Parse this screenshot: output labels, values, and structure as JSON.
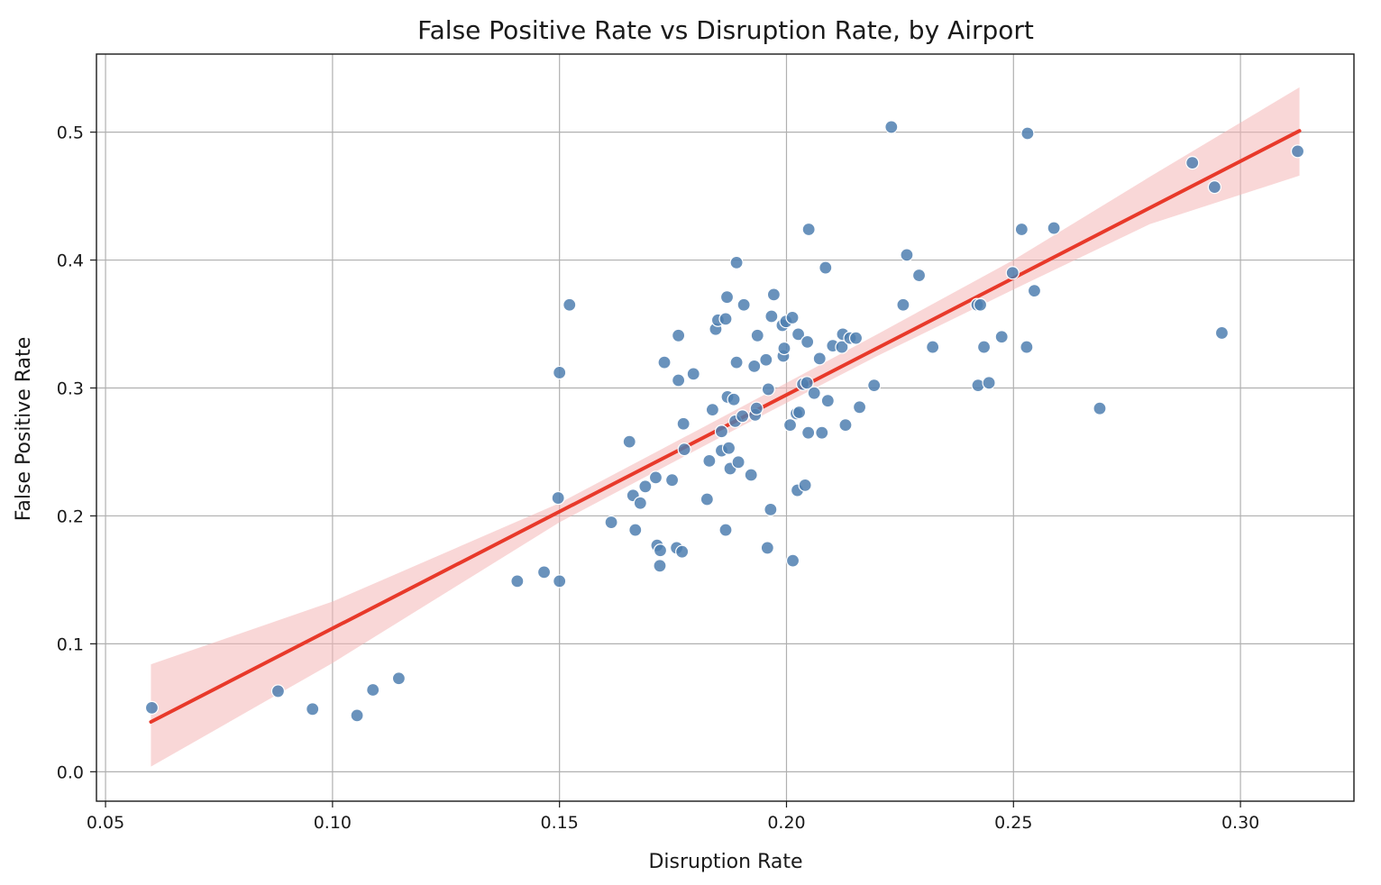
{
  "chart_data": {
    "type": "scatter",
    "title": "False Positive Rate vs Disruption Rate, by Airport",
    "xlabel": "Disruption Rate",
    "ylabel": "False Positive Rate",
    "xlim": [
      0.048,
      0.325
    ],
    "ylim": [
      -0.023,
      0.561
    ],
    "x_ticks": [
      0.05,
      0.1,
      0.15,
      0.2,
      0.25,
      0.3
    ],
    "x_tick_labels": [
      "0.05",
      "0.10",
      "0.15",
      "0.20",
      "0.25",
      "0.30"
    ],
    "y_ticks": [
      0.0,
      0.1,
      0.2,
      0.3,
      0.4,
      0.5
    ],
    "y_tick_labels": [
      "0.0",
      "0.1",
      "0.2",
      "0.3",
      "0.4",
      "0.5"
    ],
    "grid": true,
    "colors": {
      "points": "#4f7fb0",
      "regression_line": "#e8392a",
      "confidence_band": "#f4b6b6"
    },
    "regression": {
      "x_range": [
        0.06,
        0.313
      ],
      "line": [
        [
          0.06,
          0.039
        ],
        [
          0.313,
          0.501
        ]
      ],
      "band_upper": [
        [
          0.06,
          0.084
        ],
        [
          0.1,
          0.133
        ],
        [
          0.15,
          0.21
        ],
        [
          0.19,
          0.285
        ],
        [
          0.22,
          0.342
        ],
        [
          0.25,
          0.4
        ],
        [
          0.28,
          0.465
        ],
        [
          0.313,
          0.535
        ]
      ],
      "band_lower": [
        [
          0.06,
          0.004
        ],
        [
          0.1,
          0.085
        ],
        [
          0.15,
          0.195
        ],
        [
          0.19,
          0.27
        ],
        [
          0.22,
          0.325
        ],
        [
          0.25,
          0.377
        ],
        [
          0.28,
          0.428
        ],
        [
          0.313,
          0.466
        ]
      ]
    },
    "points": [
      [
        0.0602,
        0.05
      ],
      [
        0.088,
        0.063
      ],
      [
        0.0956,
        0.049
      ],
      [
        0.1054,
        0.044
      ],
      [
        0.1089,
        0.064
      ],
      [
        0.1146,
        0.073
      ],
      [
        0.1407,
        0.149
      ],
      [
        0.1466,
        0.156
      ],
      [
        0.15,
        0.149
      ],
      [
        0.1497,
        0.214
      ],
      [
        0.15,
        0.312
      ],
      [
        0.1522,
        0.365
      ],
      [
        0.1614,
        0.195
      ],
      [
        0.1654,
        0.258
      ],
      [
        0.1662,
        0.216
      ],
      [
        0.1667,
        0.189
      ],
      [
        0.1678,
        0.21
      ],
      [
        0.1689,
        0.223
      ],
      [
        0.1712,
        0.23
      ],
      [
        0.1715,
        0.177
      ],
      [
        0.1722,
        0.173
      ],
      [
        0.1721,
        0.161
      ],
      [
        0.1731,
        0.32
      ],
      [
        0.1748,
        0.228
      ],
      [
        0.1758,
        0.175
      ],
      [
        0.1762,
        0.306
      ],
      [
        0.1762,
        0.341
      ],
      [
        0.177,
        0.172
      ],
      [
        0.1773,
        0.272
      ],
      [
        0.1775,
        0.252
      ],
      [
        0.1795,
        0.311
      ],
      [
        0.1825,
        0.213
      ],
      [
        0.183,
        0.243
      ],
      [
        0.1837,
        0.283
      ],
      [
        0.1844,
        0.346
      ],
      [
        0.1849,
        0.353
      ],
      [
        0.1857,
        0.266
      ],
      [
        0.1857,
        0.251
      ],
      [
        0.1866,
        0.189
      ],
      [
        0.1866,
        0.354
      ],
      [
        0.1869,
        0.371
      ],
      [
        0.187,
        0.293
      ],
      [
        0.1873,
        0.253
      ],
      [
        0.1876,
        0.237
      ],
      [
        0.1884,
        0.291
      ],
      [
        0.1887,
        0.274
      ],
      [
        0.189,
        0.32
      ],
      [
        0.189,
        0.398
      ],
      [
        0.1894,
        0.242
      ],
      [
        0.1903,
        0.278
      ],
      [
        0.1906,
        0.365
      ],
      [
        0.1922,
        0.232
      ],
      [
        0.1929,
        0.317
      ],
      [
        0.1931,
        0.279
      ],
      [
        0.1934,
        0.284
      ],
      [
        0.1936,
        0.341
      ],
      [
        0.1955,
        0.322
      ],
      [
        0.1958,
        0.175
      ],
      [
        0.196,
        0.299
      ],
      [
        0.1965,
        0.205
      ],
      [
        0.1967,
        0.356
      ],
      [
        0.1972,
        0.373
      ],
      [
        0.1991,
        0.349
      ],
      [
        0.1993,
        0.325
      ],
      [
        0.1995,
        0.331
      ],
      [
        0.1999,
        0.352
      ],
      [
        0.2008,
        0.271
      ],
      [
        0.2013,
        0.355
      ],
      [
        0.2014,
        0.165
      ],
      [
        0.2022,
        0.28
      ],
      [
        0.2024,
        0.22
      ],
      [
        0.2026,
        0.342
      ],
      [
        0.2028,
        0.281
      ],
      [
        0.2036,
        0.303
      ],
      [
        0.2041,
        0.224
      ],
      [
        0.2045,
        0.304
      ],
      [
        0.2046,
        0.336
      ],
      [
        0.2048,
        0.265
      ],
      [
        0.2049,
        0.424
      ],
      [
        0.2061,
        0.296
      ],
      [
        0.2073,
        0.323
      ],
      [
        0.2078,
        0.265
      ],
      [
        0.2086,
        0.394
      ],
      [
        0.2091,
        0.29
      ],
      [
        0.2102,
        0.333
      ],
      [
        0.2122,
        0.332
      ],
      [
        0.2124,
        0.342
      ],
      [
        0.213,
        0.271
      ],
      [
        0.214,
        0.339
      ],
      [
        0.2153,
        0.339
      ],
      [
        0.2161,
        0.285
      ],
      [
        0.2193,
        0.302
      ],
      [
        0.2231,
        0.504
      ],
      [
        0.2257,
        0.365
      ],
      [
        0.2265,
        0.404
      ],
      [
        0.2292,
        0.388
      ],
      [
        0.2322,
        0.332
      ],
      [
        0.242,
        0.365
      ],
      [
        0.2422,
        0.302
      ],
      [
        0.2427,
        0.365
      ],
      [
        0.2435,
        0.332
      ],
      [
        0.2446,
        0.304
      ],
      [
        0.2474,
        0.34
      ],
      [
        0.2498,
        0.39
      ],
      [
        0.2518,
        0.424
      ],
      [
        0.2529,
        0.332
      ],
      [
        0.2531,
        0.499
      ],
      [
        0.2546,
        0.376
      ],
      [
        0.2589,
        0.425
      ],
      [
        0.269,
        0.284
      ],
      [
        0.2894,
        0.476
      ],
      [
        0.2943,
        0.457
      ],
      [
        0.2959,
        0.343
      ],
      [
        0.3126,
        0.485
      ]
    ]
  }
}
